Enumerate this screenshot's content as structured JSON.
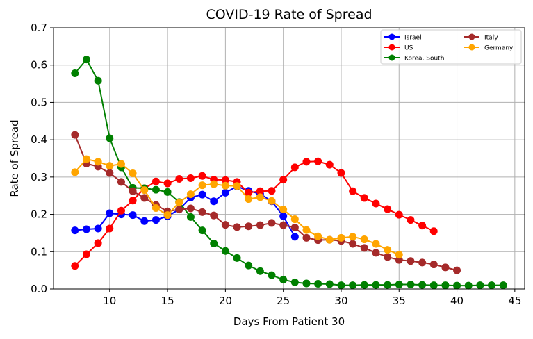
{
  "chart_data": {
    "type": "line",
    "title": "COVID-19 Rate of Spread",
    "xlabel": "Days From Patient 30",
    "ylabel": "Rate of Spread",
    "xlim": [
      5.15,
      45.85
    ],
    "ylim": [
      0,
      0.7
    ],
    "xticks": [
      10,
      15,
      20,
      25,
      30,
      35,
      40,
      45
    ],
    "yticks": [
      0.0,
      0.1,
      0.2,
      0.3,
      0.4,
      0.5,
      0.6,
      0.7
    ],
    "grid": true,
    "legend_position": "top-right",
    "series": [
      {
        "name": "Israel",
        "color": "#0000ff",
        "x_start": 7,
        "values": [
          0.157,
          0.16,
          0.162,
          0.203,
          0.2,
          0.198,
          0.182,
          0.185,
          0.195,
          0.213,
          0.245,
          0.253,
          0.235,
          0.258,
          0.275,
          0.263,
          0.255,
          0.235,
          0.195,
          0.14
        ]
      },
      {
        "name": "US",
        "color": "#ff0000",
        "x_start": 7,
        "values": [
          0.062,
          0.093,
          0.123,
          0.162,
          0.21,
          0.237,
          0.27,
          0.288,
          0.283,
          0.295,
          0.297,
          0.303,
          0.293,
          0.292,
          0.287,
          0.258,
          0.262,
          0.263,
          0.293,
          0.326,
          0.341,
          0.342,
          0.333,
          0.311,
          0.262,
          0.244,
          0.229,
          0.214,
          0.199,
          0.185,
          0.17,
          0.155
        ]
      },
      {
        "name": "Korea, South",
        "color": "#008000",
        "x_start": 7,
        "values": [
          0.578,
          0.615,
          0.558,
          0.404,
          0.326,
          0.271,
          0.27,
          0.266,
          0.26,
          0.233,
          0.193,
          0.157,
          0.122,
          0.102,
          0.083,
          0.063,
          0.048,
          0.037,
          0.025,
          0.018,
          0.015,
          0.014,
          0.013,
          0.01,
          0.01,
          0.011,
          0.011,
          0.011,
          0.012,
          0.012,
          0.011,
          0.01,
          0.01,
          0.009,
          0.009,
          0.01,
          0.01,
          0.01
        ]
      },
      {
        "name": "Italy",
        "color": "#a52a2a",
        "x_start": 7,
        "values": [
          0.413,
          0.336,
          0.328,
          0.311,
          0.287,
          0.262,
          0.244,
          0.225,
          0.208,
          0.213,
          0.216,
          0.206,
          0.197,
          0.172,
          0.166,
          0.168,
          0.171,
          0.177,
          0.171,
          0.165,
          0.137,
          0.131,
          0.132,
          0.129,
          0.121,
          0.11,
          0.097,
          0.086,
          0.078,
          0.075,
          0.071,
          0.066,
          0.058,
          0.05
        ]
      },
      {
        "name": "Germany",
        "color": "#ffa500",
        "x_start": 7,
        "values": [
          0.313,
          0.348,
          0.341,
          0.33,
          0.335,
          0.31,
          0.265,
          0.217,
          0.198,
          0.232,
          0.254,
          0.278,
          0.281,
          0.277,
          0.276,
          0.241,
          0.246,
          0.236,
          0.213,
          0.187,
          0.158,
          0.141,
          0.132,
          0.137,
          0.14,
          0.133,
          0.121,
          0.105,
          0.092
        ]
      }
    ]
  }
}
